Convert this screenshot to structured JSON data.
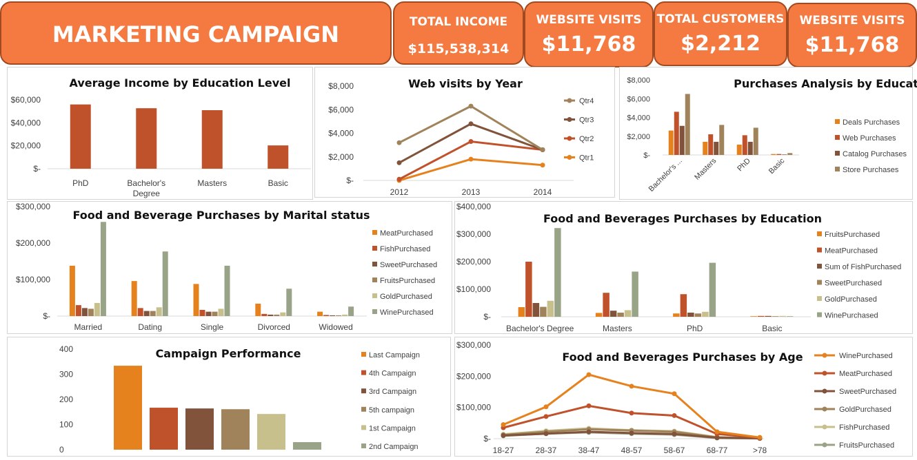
{
  "header": {
    "title": "MARKETING CAMPAIGN ANALYSIS",
    "kpis": [
      {
        "label": "TOTAL INCOME",
        "value": "$115,538,314"
      },
      {
        "label": "WEBSITE VISITS",
        "value": "$11,768"
      },
      {
        "label": "TOTAL CUSTOMERS",
        "value": "$2,212"
      },
      {
        "label": "WEBSITE VISITS",
        "value": "$11,768"
      }
    ]
  },
  "colors": {
    "tile": "#f47a42",
    "rust": "#c0522b",
    "orange": "#e6821e",
    "brown": "#80533a",
    "olive": "#a0835a",
    "sage": "#99a388",
    "beige": "#c7c08d",
    "tan": "#9c8a6a",
    "grid": "#d9d9d9"
  },
  "chart_data": [
    {
      "id": "income_edu",
      "type": "bar",
      "title": "Average Income by Education Level",
      "categories": [
        "PhD",
        "Bachelor's Degree",
        "Masters",
        "Basic"
      ],
      "series": [
        {
          "values": [
            56000,
            52700,
            51000,
            20300
          ],
          "color": "#c0522b"
        }
      ],
      "ylim": [
        0,
        60000
      ],
      "yticks": [
        0,
        20000,
        40000,
        60000
      ],
      "ytick_labels": [
        "$-",
        "$20,000",
        "$40,000",
        "$60,000"
      ],
      "legend": "none"
    },
    {
      "id": "web_visits",
      "type": "line",
      "title": "Web visits by Year",
      "categories": [
        "2012",
        "2013",
        "2014"
      ],
      "series": [
        {
          "name": "Qtr4",
          "values": [
            3200,
            6300,
            2600
          ],
          "color": "#a0835a"
        },
        {
          "name": "Qtr3",
          "values": [
            1500,
            4800,
            2600
          ],
          "color": "#80533a"
        },
        {
          "name": "Qtr2",
          "values": [
            100,
            3300,
            2600
          ],
          "color": "#c0522b"
        },
        {
          "name": "Qtr1",
          "values": [
            0,
            1800,
            1300
          ],
          "color": "#e6821e"
        }
      ],
      "ylim": [
        0,
        8000
      ],
      "yticks": [
        0,
        2000,
        4000,
        6000,
        8000
      ],
      "ytick_labels": [
        "$-",
        "$2,000",
        "$4,000",
        "$6,000",
        "$8,000"
      ],
      "legend": "right"
    },
    {
      "id": "purch_edu",
      "type": "bar",
      "title": "Purchases Analysis by Education",
      "categories": [
        "Bachelor's ...",
        "Masters",
        "PhD",
        "Basic"
      ],
      "series": [
        {
          "name": "Deals Purchases",
          "values": [
            2600,
            1400,
            1100,
            100
          ],
          "color": "#e6821e"
        },
        {
          "name": "Web Purchases",
          "values": [
            4600,
            2200,
            2100,
            100
          ],
          "color": "#c0522b"
        },
        {
          "name": "Catalog Purchases",
          "values": [
            3100,
            1400,
            1400,
            50
          ],
          "color": "#80533a"
        },
        {
          "name": "Store Purchases",
          "values": [
            6500,
            3200,
            2900,
            200
          ],
          "color": "#a0835a"
        }
      ],
      "ylim": [
        0,
        8000
      ],
      "yticks": [
        0,
        2000,
        4000,
        6000,
        8000
      ],
      "ytick_labels": [
        "$-",
        "$2,000",
        "$4,000",
        "$6,000",
        "$8,000"
      ],
      "rotate_xlabels": true,
      "legend": "right"
    },
    {
      "id": "fb_marital",
      "type": "bar",
      "title": "Food and Beverage  Purchases by Marital status",
      "categories": [
        "Married",
        "Dating",
        "Single",
        "Divorced",
        "Widowed"
      ],
      "series": [
        {
          "name": "MeatPurchased",
          "values": [
            138000,
            96000,
            88000,
            34000,
            12000
          ],
          "color": "#e6821e"
        },
        {
          "name": "FishPurchased",
          "values": [
            30000,
            22000,
            17000,
            6000,
            3000
          ],
          "color": "#c0522b"
        },
        {
          "name": "SweetPurchased",
          "values": [
            22000,
            14000,
            12000,
            4000,
            2000
          ],
          "color": "#80533a"
        },
        {
          "name": "FruitsPurchased",
          "values": [
            20000,
            14000,
            12000,
            4000,
            2000
          ],
          "color": "#a0835a"
        },
        {
          "name": "GoldPurchased",
          "values": [
            36000,
            24000,
            20000,
            10000,
            4000
          ],
          "color": "#c7c08d"
        },
        {
          "name": "WinePurchased",
          "values": [
            258000,
            177000,
            138000,
            75000,
            26000
          ],
          "color": "#99a388"
        }
      ],
      "ylim": [
        0,
        300000
      ],
      "yticks": [
        0,
        100000,
        200000,
        300000
      ],
      "ytick_labels": [
        "$-",
        "$100,000",
        "$200,000",
        "$300,000"
      ],
      "legend": "right"
    },
    {
      "id": "fb_edu",
      "type": "bar",
      "title": "Food and Beverages Purchases by Education",
      "categories": [
        "Bachelor's Degree",
        "Masters",
        "PhD",
        "Basic"
      ],
      "series": [
        {
          "name": "FruitsPurchased",
          "values": [
            35000,
            14000,
            12000,
            2000
          ],
          "color": "#e6821e"
        },
        {
          "name": "MeatPurchased",
          "values": [
            200000,
            87000,
            82000,
            3000
          ],
          "color": "#c0522b"
        },
        {
          "name": "Sum of FishPurchased",
          "values": [
            50000,
            22000,
            15000,
            3000
          ],
          "color": "#80533a"
        },
        {
          "name": "SweetPurchased",
          "values": [
            36000,
            15000,
            12000,
            2000
          ],
          "color": "#a0835a"
        },
        {
          "name": "GoldPurchased",
          "values": [
            58000,
            24000,
            18000,
            3000
          ],
          "color": "#c7c08d"
        },
        {
          "name": "WinePurchased",
          "values": [
            322000,
            164000,
            196000,
            2000
          ],
          "color": "#99a388"
        }
      ],
      "ylim": [
        0,
        400000
      ],
      "yticks": [
        0,
        100000,
        200000,
        300000,
        400000
      ],
      "ytick_labels": [
        "$-",
        "$100,000",
        "$200,000",
        "$300,000",
        "$400,000"
      ],
      "legend": "right"
    },
    {
      "id": "campaign",
      "type": "bar",
      "title": "Campaign  Performance",
      "categories": [
        "Last Campaign",
        "4th Campaign",
        "3rd Campaign",
        "5th campaign",
        "1st Campaign",
        "2nd Campaign"
      ],
      "series": [
        {
          "values": [
            334,
            167,
            164,
            161,
            142,
            30
          ],
          "colors": [
            "#e6821e",
            "#c0522b",
            "#80533a",
            "#a0835a",
            "#c7c08d",
            "#99a388"
          ]
        }
      ],
      "ylim": [
        0,
        400
      ],
      "yticks": [
        0,
        100,
        200,
        300,
        400
      ],
      "ytick_labels": [
        "0",
        "100",
        "200",
        "300",
        "400"
      ],
      "legend": "right"
    },
    {
      "id": "fb_age",
      "type": "line",
      "title": "Food and Beverages Purchases by Age",
      "categories": [
        "18-27",
        "28-37",
        "38-47",
        "48-57",
        "58-67",
        "68-77",
        ">78"
      ],
      "series": [
        {
          "name": "WinePurchased",
          "values": [
            45000,
            102000,
            205000,
            168000,
            144000,
            22000,
            4000
          ],
          "color": "#e6821e"
        },
        {
          "name": "MeatPurchased",
          "values": [
            35000,
            71000,
            105000,
            82000,
            74000,
            15000,
            3000
          ],
          "color": "#c0522b"
        },
        {
          "name": "SweetPurchased",
          "values": [
            10000,
            16000,
            22000,
            18000,
            15000,
            3000,
            1000
          ],
          "color": "#80533a"
        },
        {
          "name": "GoldPurchased",
          "values": [
            12000,
            22000,
            30000,
            26000,
            22000,
            4000,
            1000
          ],
          "color": "#a0835a"
        },
        {
          "name": "FishPurchased",
          "values": [
            14000,
            25000,
            33000,
            27000,
            24000,
            5000,
            1000
          ],
          "color": "#c7c08d"
        },
        {
          "name": "FruitsPurchased",
          "values": [
            9000,
            16000,
            20000,
            16000,
            13000,
            2000,
            500
          ],
          "color": "#99a388"
        }
      ],
      "ylim": [
        0,
        300000
      ],
      "yticks": [
        0,
        100000,
        200000,
        300000
      ],
      "ytick_labels": [
        "$-",
        "$100,000",
        "$200,000",
        "$300,000"
      ],
      "legend": "right"
    }
  ]
}
